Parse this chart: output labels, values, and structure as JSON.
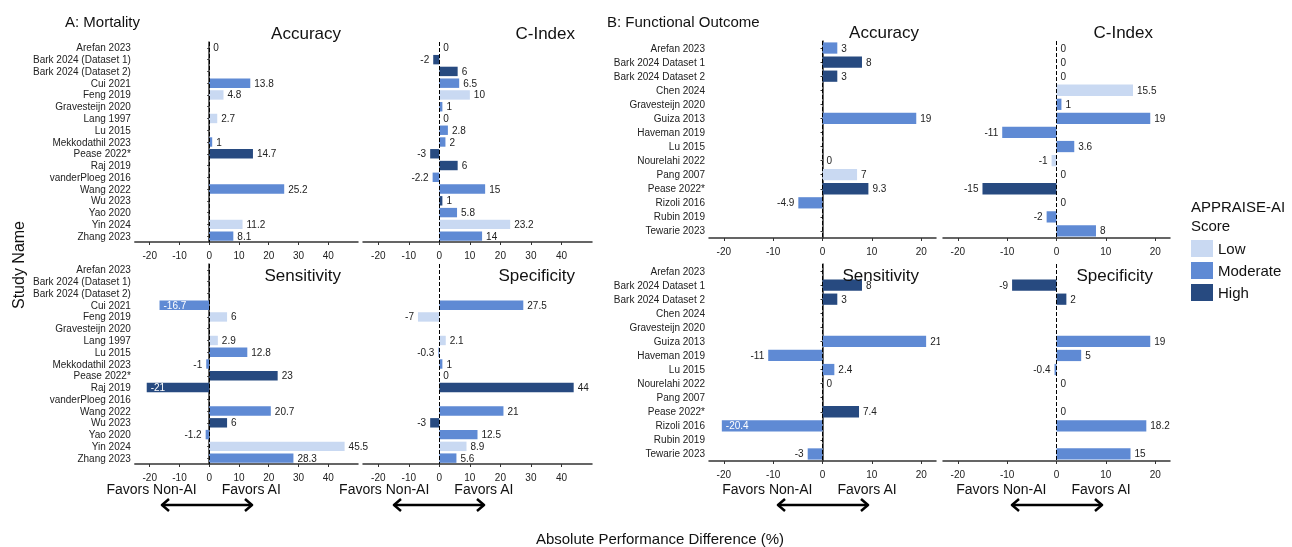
{
  "chart_data": [
    {
      "type": "bar",
      "orientation": "horizontal",
      "stacked": true,
      "title": "Accuracy",
      "annotations": [
        "A: Mortality"
      ],
      "ylabel": "Study Name",
      "categories": [
        "Arefan 2023",
        "Bark 2024 (Dataset 1)",
        "Bark 2024 (Dataset 2)",
        "Cui 2021",
        "Feng 2019",
        "Gravesteijn 2020",
        "Lang 1997",
        "Lu 2015",
        "Mekkodathil 2023",
        "Pease 2022*",
        "Raj 2019",
        "vanderPloeg 2016",
        "Wang 2022",
        "Wu 2023",
        "Yao 2020",
        "Yin 2024",
        "Zhang 2023"
      ],
      "series": [
        {
          "color": "#c9d9f2",
          "values": [
            null,
            null,
            null,
            null,
            4.8,
            null,
            2.7,
            null,
            null,
            null,
            null,
            null,
            null,
            null,
            null,
            11.2,
            null
          ]
        },
        {
          "color": "#5f8ad4",
          "values": [
            0,
            null,
            null,
            13.8,
            null,
            null,
            null,
            null,
            1,
            null,
            null,
            null,
            25.2,
            null,
            null,
            null,
            8.1
          ]
        },
        {
          "color": "#274a80",
          "values": [
            null,
            null,
            null,
            null,
            null,
            null,
            null,
            null,
            null,
            14.7,
            null,
            null,
            null,
            null,
            null,
            null,
            null
          ]
        }
      ],
      "xlim": [
        -25,
        50
      ],
      "xticks": [
        -20,
        -10,
        0,
        10,
        20,
        30,
        40
      ],
      "ref_lines": [
        {
          "axis": "x",
          "value": 0,
          "color": "#000000",
          "line_style": "dashed"
        }
      ],
      "data_labels": true
    },
    {
      "type": "bar",
      "orientation": "horizontal",
      "stacked": true,
      "title": "C-Index",
      "tick_labels": "x",
      "categories": [
        "Arefan 2023",
        "Bark 2024 (Dataset 1)",
        "Bark 2024 (Dataset 2)",
        "Cui 2021",
        "Feng 2019",
        "Gravesteijn 2020",
        "Lang 1997",
        "Lu 2015",
        "Mekkodathil 2023",
        "Pease 2022*",
        "Raj 2019",
        "vanderPloeg 2016",
        "Wang 2022",
        "Wu 2023",
        "Yao 2020",
        "Yin 2024",
        "Zhang 2023"
      ],
      "series": [
        {
          "color": "#c9d9f2",
          "values": [
            null,
            null,
            null,
            null,
            10,
            null,
            0,
            null,
            null,
            null,
            null,
            null,
            null,
            null,
            null,
            23.2,
            null
          ]
        },
        {
          "color": "#5f8ad4",
          "values": [
            0,
            null,
            null,
            6.5,
            null,
            1,
            null,
            2.8,
            2,
            null,
            null,
            -2.2,
            15,
            null,
            5.8,
            null,
            14
          ]
        },
        {
          "color": "#274a80",
          "values": [
            null,
            -2,
            6,
            null,
            null,
            null,
            null,
            null,
            null,
            -3,
            6,
            null,
            null,
            1,
            null,
            null,
            null
          ]
        }
      ],
      "xlim": [
        -25,
        50
      ],
      "xticks": [
        -20,
        -10,
        0,
        10,
        20,
        30,
        40
      ],
      "ref_lines": [
        {
          "axis": "x",
          "value": 0,
          "color": "#000000",
          "line_style": "dashed"
        }
      ],
      "data_labels": true
    },
    {
      "type": "bar",
      "orientation": "horizontal",
      "stacked": true,
      "title": "Sensitivity",
      "annotations": [
        "Favors Non-AI",
        "Favors AI"
      ],
      "categories": [
        "Arefan 2023",
        "Bark 2024 (Dataset 1)",
        "Bark 2024 (Dataset 2)",
        "Cui 2021",
        "Feng 2019",
        "Gravesteijn 2020",
        "Lang 1997",
        "Lu 2015",
        "Mekkodathil 2023",
        "Pease 2022*",
        "Raj 2019",
        "vanderPloeg 2016",
        "Wang 2022",
        "Wu 2023",
        "Yao 2020",
        "Yin 2024",
        "Zhang 2023"
      ],
      "series": [
        {
          "color": "#c9d9f2",
          "values": [
            null,
            null,
            null,
            null,
            6,
            null,
            2.9,
            null,
            null,
            null,
            null,
            null,
            null,
            null,
            null,
            45.5,
            null
          ]
        },
        {
          "color": "#5f8ad4",
          "values": [
            null,
            null,
            null,
            -16.7,
            null,
            null,
            null,
            12.8,
            -1,
            null,
            null,
            null,
            20.7,
            null,
            -1.2,
            null,
            28.3
          ]
        },
        {
          "color": "#274a80",
          "values": [
            null,
            null,
            null,
            null,
            null,
            null,
            null,
            null,
            null,
            23,
            -21,
            null,
            null,
            6,
            null,
            null,
            null
          ]
        }
      ],
      "xlim": [
        -25,
        50
      ],
      "xticks": [
        -20,
        -10,
        0,
        10,
        20,
        30,
        40
      ],
      "ref_lines": [
        {
          "axis": "x",
          "value": 0,
          "color": "#000000",
          "line_style": "dashed"
        }
      ],
      "data_labels": true
    },
    {
      "type": "bar",
      "orientation": "horizontal",
      "stacked": true,
      "title": "Specificity",
      "tick_labels": "x",
      "annotations": [
        "Favors Non-AI",
        "Favors AI"
      ],
      "xlabel": "Absolute Performance Difference (%)",
      "categories": [
        "Arefan 2023",
        "Bark 2024 (Dataset 1)",
        "Bark 2024 (Dataset 2)",
        "Cui 2021",
        "Feng 2019",
        "Gravesteijn 2020",
        "Lang 1997",
        "Lu 2015",
        "Mekkodathil 2023",
        "Pease 2022*",
        "Raj 2019",
        "vanderPloeg 2016",
        "Wang 2022",
        "Wu 2023",
        "Yao 2020",
        "Yin 2024",
        "Zhang 2023"
      ],
      "series": [
        {
          "color": "#c9d9f2",
          "values": [
            null,
            null,
            null,
            null,
            -7,
            null,
            2.1,
            null,
            null,
            null,
            null,
            null,
            null,
            null,
            null,
            8.9,
            null
          ]
        },
        {
          "color": "#5f8ad4",
          "values": [
            null,
            null,
            null,
            27.5,
            null,
            null,
            null,
            -0.3,
            1,
            null,
            null,
            null,
            21,
            null,
            12.5,
            null,
            5.6
          ]
        },
        {
          "color": "#274a80",
          "values": [
            null,
            null,
            null,
            null,
            null,
            null,
            null,
            null,
            null,
            0,
            44,
            null,
            null,
            -3,
            null,
            null,
            null
          ]
        }
      ],
      "xlim": [
        -25,
        50
      ],
      "xticks": [
        -20,
        -10,
        0,
        10,
        20,
        30,
        40
      ],
      "ref_lines": [
        {
          "axis": "x",
          "value": 0,
          "color": "#000000",
          "line_style": "dashed"
        }
      ],
      "data_labels": true
    },
    {
      "type": "bar",
      "orientation": "horizontal",
      "stacked": true,
      "title": "Accuracy",
      "annotations": [
        "B: Functional Outcome"
      ],
      "categories": [
        "Arefan 2023",
        "Bark 2024 Dataset 1",
        "Bark 2024 Dataset 2",
        "Chen 2024",
        "Gravesteijn 2020",
        "Guiza 2013",
        "Haveman 2019",
        "Lu 2015",
        "Nourelahi 2022",
        "Pang 2007",
        "Pease 2022*",
        "Rizoli 2016",
        "Rubin 2019",
        "Tewarie 2023"
      ],
      "series": [
        {
          "color": "#c9d9f2",
          "values": [
            null,
            null,
            null,
            null,
            null,
            null,
            null,
            null,
            0,
            7,
            null,
            null,
            null,
            null
          ]
        },
        {
          "color": "#5f8ad4",
          "values": [
            3,
            null,
            null,
            null,
            null,
            19,
            null,
            null,
            null,
            null,
            null,
            -4.9,
            null,
            null
          ]
        },
        {
          "color": "#274a80",
          "values": [
            null,
            8,
            3,
            null,
            null,
            null,
            null,
            null,
            null,
            null,
            9.3,
            null,
            null,
            null
          ]
        }
      ],
      "xlim": [
        -23,
        23
      ],
      "xticks": [
        -20,
        -10,
        0,
        10,
        20
      ],
      "ref_lines": [
        {
          "axis": "x",
          "value": 0,
          "color": "#000000",
          "line_style": "dashed"
        }
      ],
      "data_labels": true
    },
    {
      "type": "bar",
      "orientation": "horizontal",
      "stacked": true,
      "title": "C-Index",
      "tick_labels": "x",
      "legend": "right",
      "legend_title": "APPRAISE-AI Score",
      "categories": [
        "Arefan 2023",
        "Bark 2024 Dataset 1",
        "Bark 2024 Dataset 2",
        "Chen 2024",
        "Gravesteijn 2020",
        "Guiza 2013",
        "Haveman 2019",
        "Lu 2015",
        "Nourelahi 2022",
        "Pang 2007",
        "Pease 2022*",
        "Rizoli 2016",
        "Rubin 2019",
        "Tewarie 2023"
      ],
      "series": [
        {
          "name": "Low",
          "color": "#c9d9f2",
          "values": [
            null,
            null,
            null,
            15.5,
            null,
            null,
            null,
            null,
            -1,
            0,
            null,
            null,
            null,
            null
          ]
        },
        {
          "name": "Moderate",
          "color": "#5f8ad4",
          "values": [
            0,
            null,
            null,
            null,
            1,
            19,
            -11,
            3.6,
            null,
            null,
            null,
            0,
            -2,
            8
          ]
        },
        {
          "name": "High",
          "color": "#274a80",
          "values": [
            null,
            0,
            0,
            null,
            null,
            null,
            null,
            null,
            null,
            null,
            -15,
            null,
            null,
            null
          ]
        }
      ],
      "xlim": [
        -23,
        23
      ],
      "xticks": [
        -20,
        -10,
        0,
        10,
        20
      ],
      "ref_lines": [
        {
          "axis": "x",
          "value": 0,
          "color": "#000000",
          "line_style": "dashed"
        }
      ],
      "data_labels": true
    },
    {
      "type": "bar",
      "orientation": "horizontal",
      "stacked": true,
      "title": "Sensitivity",
      "annotations": [
        "Favors Non-AI",
        "Favors AI"
      ],
      "categories": [
        "Arefan 2023",
        "Bark 2024 Dataset 1",
        "Bark 2024 Dataset 2",
        "Chen 2024",
        "Gravesteijn 2020",
        "Guiza 2013",
        "Haveman 2019",
        "Lu 2015",
        "Nourelahi 2022",
        "Pang 2007",
        "Pease 2022*",
        "Rizoli 2016",
        "Rubin 2019",
        "Tewarie 2023"
      ],
      "series": [
        {
          "color": "#c9d9f2",
          "values": [
            null,
            null,
            null,
            null,
            null,
            null,
            null,
            null,
            0,
            null,
            null,
            null,
            null,
            null
          ]
        },
        {
          "color": "#5f8ad4",
          "values": [
            null,
            null,
            null,
            null,
            null,
            21,
            -11,
            2.4,
            null,
            null,
            null,
            -20.4,
            null,
            -3
          ]
        },
        {
          "color": "#274a80",
          "values": [
            null,
            8,
            3,
            null,
            null,
            null,
            null,
            null,
            null,
            null,
            7.4,
            null,
            null,
            null
          ]
        }
      ],
      "xlim": [
        -23,
        23
      ],
      "xticks": [
        -20,
        -10,
        0,
        10,
        20
      ],
      "ref_lines": [
        {
          "axis": "x",
          "value": 0,
          "color": "#000000",
          "line_style": "dashed"
        }
      ],
      "data_labels": true
    },
    {
      "type": "bar",
      "orientation": "horizontal",
      "stacked": true,
      "title": "Specificity",
      "tick_labels": "x",
      "annotations": [
        "Favors Non-AI",
        "Favors AI"
      ],
      "categories": [
        "Arefan 2023",
        "Bark 2024 Dataset 1",
        "Bark 2024 Dataset 2",
        "Chen 2024",
        "Gravesteijn 2020",
        "Guiza 2013",
        "Haveman 2019",
        "Lu 2015",
        "Nourelahi 2022",
        "Pang 2007",
        "Pease 2022*",
        "Rizoli 2016",
        "Rubin 2019",
        "Tewarie 2023"
      ],
      "series": [
        {
          "color": "#c9d9f2",
          "values": [
            null,
            null,
            null,
            null,
            null,
            null,
            null,
            null,
            0,
            null,
            null,
            null,
            null,
            null
          ]
        },
        {
          "color": "#5f8ad4",
          "values": [
            null,
            null,
            null,
            null,
            null,
            19,
            5,
            -0.4,
            null,
            null,
            null,
            18.2,
            null,
            15
          ]
        },
        {
          "color": "#274a80",
          "values": [
            null,
            -9,
            2,
            null,
            null,
            null,
            null,
            null,
            null,
            null,
            0,
            null,
            null,
            null
          ]
        }
      ],
      "xlim": [
        -23,
        23
      ],
      "xticks": [
        -20,
        -10,
        0,
        10,
        20
      ],
      "ref_lines": [
        {
          "axis": "x",
          "value": 0,
          "color": "#000000",
          "line_style": "dashed"
        }
      ],
      "data_labels": true
    }
  ]
}
